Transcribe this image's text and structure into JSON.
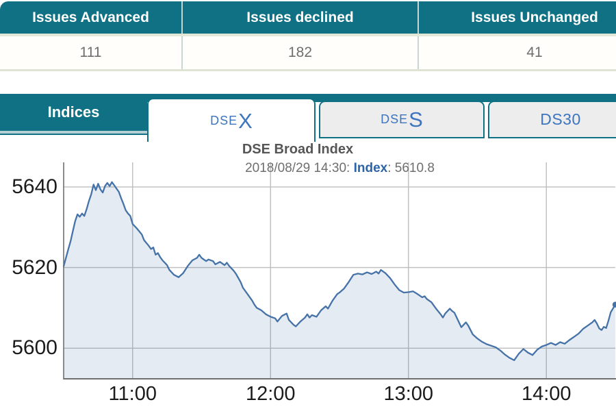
{
  "colors": {
    "teal": "#0f7183",
    "teal_underline": "#b5cfd4",
    "tab_text_blue": "#3c74c0",
    "line_blue": "#4572a7",
    "area_fill": "rgba(69,114,167,0.14)",
    "grid": "#bdbdbd",
    "axis": "#6f6f6f"
  },
  "issues_table": {
    "columns": [
      {
        "label": "Issues Advanced",
        "value": "111"
      },
      {
        "label": "Issues declined",
        "value": "182"
      },
      {
        "label": "Issues Unchanged",
        "value": "41"
      }
    ]
  },
  "tabbar": {
    "panel_label": "Indices",
    "tabs": [
      {
        "small": "DSE",
        "big": "X",
        "active": true
      },
      {
        "small": "DSE",
        "big": "S",
        "active": false
      },
      {
        "small": "DS30",
        "big": "",
        "active": false
      }
    ]
  },
  "chart": {
    "title": "DSE Broad Index",
    "subtitle": {
      "datetime": "2018/08/29 14:30: ",
      "series_label": "Index",
      "value_text": ": 5610.8"
    }
  },
  "chart_data": {
    "type": "area",
    "title": "DSE Broad Index",
    "subtitle": "2018/08/29 14:30: Index: 5610.8",
    "xlabel": "",
    "ylabel": "",
    "x_ticks": [
      "11:00",
      "12:00",
      "13:00",
      "14:00"
    ],
    "y_ticks": [
      5600,
      5620,
      5640
    ],
    "xlim": [
      "10:30",
      "14:30"
    ],
    "ylim": [
      5592.4,
      5646.1
    ],
    "grid": true,
    "legend": false,
    "last_point_marker": true,
    "series": [
      {
        "name": "Index",
        "points": [
          [
            "10:30",
            5620.3
          ],
          [
            "10:32",
            5624.5
          ],
          [
            "10:33",
            5626.5
          ],
          [
            "10:34",
            5629.0
          ],
          [
            "10:35",
            5631.5
          ],
          [
            "10:36",
            5633.2
          ],
          [
            "10:37",
            5632.6
          ],
          [
            "10:38",
            5633.4
          ],
          [
            "10:39",
            5632.8
          ],
          [
            "10:40",
            5634.5
          ],
          [
            "10:41",
            5636.5
          ],
          [
            "10:42",
            5638.2
          ],
          [
            "10:43",
            5640.6
          ],
          [
            "10:44",
            5639.2
          ],
          [
            "10:45",
            5640.8
          ],
          [
            "10:46",
            5639.4
          ],
          [
            "10:47",
            5638.6
          ],
          [
            "10:48",
            5640.2
          ],
          [
            "10:49",
            5641.0
          ],
          [
            "10:50",
            5640.2
          ],
          [
            "10:51",
            5641.2
          ],
          [
            "10:52",
            5640.4
          ],
          [
            "10:53",
            5639.6
          ],
          [
            "10:54",
            5638.8
          ],
          [
            "10:55",
            5637.2
          ],
          [
            "10:56",
            5635.8
          ],
          [
            "10:57",
            5634.2
          ],
          [
            "10:58",
            5633.4
          ],
          [
            "10:59",
            5632.8
          ],
          [
            "11:00",
            5630.8
          ],
          [
            "11:02",
            5629.6
          ],
          [
            "11:04",
            5628.2
          ],
          [
            "11:05",
            5626.8
          ],
          [
            "11:07",
            5625.4
          ],
          [
            "11:08",
            5624.6
          ],
          [
            "11:09",
            5625.0
          ],
          [
            "11:10",
            5623.2
          ],
          [
            "11:11",
            5623.6
          ],
          [
            "11:12",
            5622.6
          ],
          [
            "11:13",
            5621.8
          ],
          [
            "11:15",
            5620.6
          ],
          [
            "11:16",
            5619.4
          ],
          [
            "11:18",
            5618.2
          ],
          [
            "11:20",
            5617.6
          ],
          [
            "11:22",
            5618.6
          ],
          [
            "11:24",
            5620.4
          ],
          [
            "11:26",
            5621.8
          ],
          [
            "11:28",
            5622.4
          ],
          [
            "11:29",
            5623.2
          ],
          [
            "11:30",
            5622.4
          ],
          [
            "11:32",
            5621.6
          ],
          [
            "11:33",
            5622.0
          ],
          [
            "11:35",
            5621.6
          ],
          [
            "11:36",
            5620.8
          ],
          [
            "11:38",
            5621.4
          ],
          [
            "11:40",
            5620.6
          ],
          [
            "11:41",
            5621.2
          ],
          [
            "11:42",
            5620.4
          ],
          [
            "11:44",
            5619.2
          ],
          [
            "11:45",
            5618.4
          ],
          [
            "11:47",
            5616.4
          ],
          [
            "11:48",
            5615.0
          ],
          [
            "11:50",
            5613.4
          ],
          [
            "11:52",
            5611.8
          ],
          [
            "11:53",
            5610.8
          ],
          [
            "11:54",
            5610.0
          ],
          [
            "11:56",
            5609.4
          ],
          [
            "11:58",
            5608.4
          ],
          [
            "12:00",
            5607.8
          ],
          [
            "12:02",
            5607.4
          ],
          [
            "12:03",
            5606.6
          ],
          [
            "12:05",
            5608.0
          ],
          [
            "12:07",
            5608.6
          ],
          [
            "12:08",
            5607.0
          ],
          [
            "12:10",
            5605.8
          ],
          [
            "12:11",
            5605.4
          ],
          [
            "12:13",
            5606.6
          ],
          [
            "12:15",
            5607.6
          ],
          [
            "12:16",
            5608.4
          ],
          [
            "12:17",
            5607.6
          ],
          [
            "12:18",
            5608.2
          ],
          [
            "12:20",
            5607.8
          ],
          [
            "12:22",
            5609.4
          ],
          [
            "12:24",
            5610.4
          ],
          [
            "12:25",
            5609.8
          ],
          [
            "12:27",
            5611.8
          ],
          [
            "12:29",
            5613.4
          ],
          [
            "12:30",
            5613.8
          ],
          [
            "12:32",
            5614.8
          ],
          [
            "12:34",
            5616.4
          ],
          [
            "12:36",
            5618.2
          ],
          [
            "12:38",
            5618.5
          ],
          [
            "12:40",
            5618.3
          ],
          [
            "12:42",
            5618.8
          ],
          [
            "12:44",
            5618.4
          ],
          [
            "12:46",
            5619.0
          ],
          [
            "12:47",
            5618.5
          ],
          [
            "12:48",
            5619.4
          ],
          [
            "12:50",
            5618.6
          ],
          [
            "12:52",
            5617.4
          ],
          [
            "12:54",
            5615.8
          ],
          [
            "12:56",
            5614.4
          ],
          [
            "12:58",
            5613.8
          ],
          [
            "13:00",
            5613.9
          ],
          [
            "13:02",
            5614.1
          ],
          [
            "13:04",
            5613.4
          ],
          [
            "13:06",
            5612.6
          ],
          [
            "13:07",
            5612.9
          ],
          [
            "13:08",
            5612.2
          ],
          [
            "13:10",
            5611.4
          ],
          [
            "13:12",
            5609.8
          ],
          [
            "13:14",
            5608.4
          ],
          [
            "13:15",
            5607.6
          ],
          [
            "13:16",
            5608.6
          ],
          [
            "13:18",
            5609.8
          ],
          [
            "13:19",
            5609.2
          ],
          [
            "13:20",
            5608.8
          ],
          [
            "13:22",
            5606.4
          ],
          [
            "13:23",
            5605.2
          ],
          [
            "13:25",
            5606.4
          ],
          [
            "13:26",
            5605.6
          ],
          [
            "13:28",
            5603.4
          ],
          [
            "13:30",
            5602.4
          ],
          [
            "13:32",
            5601.6
          ],
          [
            "13:34",
            5601.0
          ],
          [
            "13:36",
            5600.6
          ],
          [
            "13:38",
            5600.2
          ],
          [
            "13:40",
            5599.4
          ],
          [
            "13:42",
            5598.4
          ],
          [
            "13:44",
            5597.6
          ],
          [
            "13:46",
            5597.0
          ],
          [
            "13:48",
            5598.6
          ],
          [
            "13:50",
            5599.8
          ],
          [
            "13:52",
            5598.9
          ],
          [
            "13:54",
            5598.3
          ],
          [
            "13:56",
            5599.6
          ],
          [
            "13:58",
            5600.4
          ],
          [
            "14:00",
            5600.8
          ],
          [
            "14:02",
            5601.3
          ],
          [
            "14:04",
            5600.8
          ],
          [
            "14:06",
            5601.5
          ],
          [
            "14:08",
            5601.1
          ],
          [
            "14:10",
            5602.0
          ],
          [
            "14:12",
            5602.8
          ],
          [
            "14:14",
            5603.6
          ],
          [
            "14:16",
            5604.8
          ],
          [
            "14:18",
            5605.6
          ],
          [
            "14:20",
            5606.4
          ],
          [
            "14:21",
            5607.0
          ],
          [
            "14:22",
            5606.1
          ],
          [
            "14:23",
            5604.9
          ],
          [
            "14:24",
            5604.5
          ],
          [
            "14:25",
            5605.3
          ],
          [
            "14:26",
            5605.0
          ],
          [
            "14:27",
            5606.8
          ],
          [
            "14:28",
            5608.9
          ],
          [
            "14:30",
            5610.8
          ]
        ]
      }
    ]
  }
}
